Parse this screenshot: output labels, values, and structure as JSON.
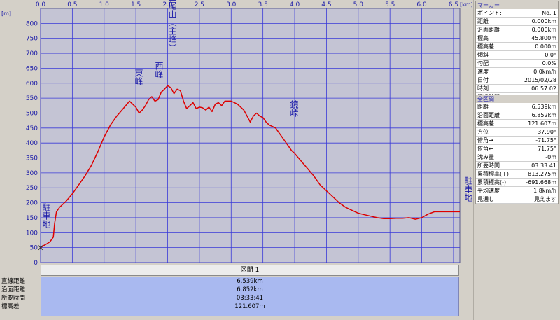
{
  "chart_data": {
    "type": "area",
    "x_unit": "[km]",
    "y_unit": "[m]",
    "xlim": [
      0,
      6.6
    ],
    "ylim": [
      0,
      850
    ],
    "x_ticks": [
      "0.0",
      "0.5",
      "1.0",
      "1.5",
      "2.0",
      "2.5",
      "3.0",
      "3.5",
      "4.0",
      "4.5",
      "5.0",
      "5.5",
      "6.0",
      "6.5"
    ],
    "y_ticks": [
      "0",
      "50",
      "100",
      "150",
      "200",
      "250",
      "300",
      "350",
      "400",
      "450",
      "500",
      "550",
      "600",
      "650",
      "700",
      "750",
      "800"
    ],
    "grid": true,
    "series": [
      {
        "x": [
          0.0,
          0.05,
          0.1,
          0.15,
          0.2,
          0.22,
          0.25,
          0.3,
          0.4,
          0.5,
          0.6,
          0.7,
          0.8,
          0.9,
          1.0,
          1.1,
          1.2,
          1.3,
          1.4,
          1.5,
          1.55,
          1.6,
          1.65,
          1.7,
          1.75,
          1.8,
          1.85,
          1.9,
          1.95,
          2.0,
          2.05,
          2.1,
          2.15,
          2.2,
          2.25,
          2.3,
          2.35,
          2.4,
          2.45,
          2.5,
          2.55,
          2.6,
          2.65,
          2.7,
          2.75,
          2.8,
          2.85,
          2.9,
          2.95,
          3.0,
          3.05,
          3.1,
          3.15,
          3.2,
          3.25,
          3.3,
          3.35,
          3.4,
          3.45,
          3.5,
          3.55,
          3.6,
          3.65,
          3.7,
          3.75,
          3.8,
          3.85,
          3.9,
          3.95,
          4.0,
          4.1,
          4.2,
          4.3,
          4.4,
          4.5,
          4.6,
          4.7,
          4.8,
          4.9,
          5.0,
          5.1,
          5.2,
          5.3,
          5.4,
          5.5,
          5.6,
          5.7,
          5.8,
          5.9,
          6.0,
          6.1,
          6.2,
          6.3,
          6.4,
          6.5,
          6.6
        ],
        "y": [
          50,
          57,
          63,
          70,
          85,
          130,
          170,
          185,
          205,
          230,
          260,
          290,
          325,
          370,
          420,
          460,
          490,
          515,
          540,
          520,
          500,
          510,
          525,
          545,
          555,
          540,
          545,
          570,
          580,
          592,
          585,
          565,
          580,
          575,
          540,
          515,
          525,
          535,
          515,
          520,
          518,
          510,
          520,
          505,
          530,
          535,
          525,
          540,
          540,
          540,
          535,
          530,
          520,
          510,
          490,
          470,
          490,
          500,
          490,
          485,
          470,
          460,
          455,
          450,
          435,
          420,
          405,
          390,
          375,
          365,
          340,
          315,
          290,
          260,
          240,
          220,
          200,
          185,
          175,
          165,
          160,
          155,
          150,
          147,
          147,
          148,
          148,
          150,
          145,
          150,
          162,
          170,
          170,
          170,
          170,
          170
        ]
      }
    ],
    "annotations": [
      {
        "text": "駐車地",
        "x": 0.0,
        "y": 50
      },
      {
        "text": "東峰",
        "x": 1.5,
        "y": 540
      },
      {
        "text": "西峰",
        "x": 1.75,
        "y": 555
      },
      {
        "text": "三尾山（主峰）",
        "x": 2.0,
        "y": 592
      },
      {
        "text": "鏡峠",
        "x": 3.95,
        "y": 375
      },
      {
        "text": "駐車地",
        "x": 6.6,
        "y": 170
      }
    ],
    "colors": {
      "line": "#dd0000",
      "plot_bg": "#c4c4d4",
      "grid": "#3a3ad8",
      "text": "#1a1aa8"
    }
  },
  "summary": {
    "header": "区間 1",
    "rows": [
      {
        "label": "直線距離",
        "value": "6.539km"
      },
      {
        "label": "沿面距離",
        "value": "6.852km"
      },
      {
        "label": "所要時間",
        "value": "03:33:41"
      },
      {
        "label": "標高差",
        "value": "121.607m"
      }
    ]
  },
  "side_panel": {
    "marker": {
      "title": "マーカー",
      "rows": [
        {
          "key": "ポイント:",
          "value": "No. 1"
        },
        {
          "key": "距離",
          "value": "0.000km"
        },
        {
          "key": "沿面距離",
          "value": "0.000km"
        },
        {
          "key": "標高",
          "value": "45.800m"
        },
        {
          "key": "標高差",
          "value": "0.000m"
        },
        {
          "key": "傾斜",
          "value": "0.0°"
        },
        {
          "key": "勾配",
          "value": "0.0%"
        },
        {
          "key": "速度",
          "value": "0.0km/h"
        },
        {
          "key": "日付",
          "value": "2015/02/28"
        },
        {
          "key": "時刻",
          "value": "06:57:02"
        },
        {
          "key": "経過時間",
          "value": "00:00:00"
        }
      ]
    },
    "section": {
      "title": "全区間",
      "rows": [
        {
          "key": "距離",
          "value": "6.539km"
        },
        {
          "key": "沿面距離",
          "value": "6.852km"
        },
        {
          "key": "標高差",
          "value": "121.607m"
        },
        {
          "key": "方位",
          "value": "37.90°"
        },
        {
          "key": "俯角→",
          "value": "-71.75°"
        },
        {
          "key": "俯角←",
          "value": "71.75°"
        },
        {
          "key": "沈み量",
          "value": "-0m"
        },
        {
          "key": "所要時間",
          "value": "03:33:41"
        },
        {
          "key": "累積標高(+)",
          "value": "813.275m"
        },
        {
          "key": "累積標高(-)",
          "value": "-691.668m"
        },
        {
          "key": "平均速度",
          "value": "1.8km/h"
        },
        {
          "key": "見通し",
          "value": "見えます"
        }
      ]
    }
  }
}
